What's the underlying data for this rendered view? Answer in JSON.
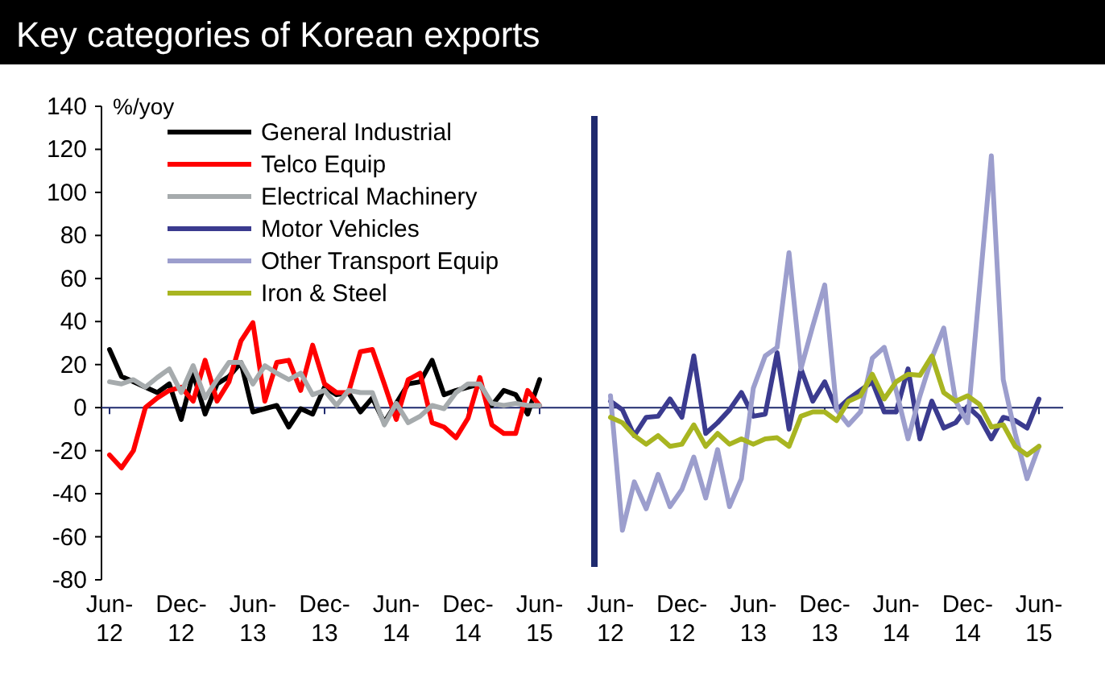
{
  "chart_data": [
    {
      "type": "line",
      "title": "Key categories of Korean exports",
      "ylabel": "%/yoy",
      "categories": [
        "Jun-12",
        null,
        null,
        null,
        null,
        null,
        "Dec-12",
        null,
        null,
        null,
        null,
        null,
        "Jun-13",
        null,
        null,
        null,
        null,
        null,
        "Dec-13",
        null,
        null,
        null,
        null,
        null,
        "Jun-14",
        null,
        null,
        null,
        null,
        null,
        "Dec-14",
        null,
        null,
        null,
        null,
        null,
        "Jun-15"
      ],
      "ylim": [
        -80,
        140
      ],
      "yticks": [
        -80,
        -60,
        -40,
        -20,
        0,
        20,
        40,
        60,
        80,
        100,
        120,
        140
      ],
      "grid": false,
      "legend": "top left",
      "marker": "none",
      "line_style": "solid",
      "ref_lines": [
        {
          "axis": "y",
          "value": 0,
          "color": "#1f2a6e"
        }
      ],
      "series": [
        {
          "name": "General Industrial",
          "color": "#000000",
          "values": [
            27,
            14.5,
            12,
            9.5,
            7,
            11,
            -5.5,
            16,
            -3,
            11,
            14.5,
            21,
            -2,
            -0.5,
            1,
            -9,
            -0.5,
            -3,
            9.5,
            6,
            7,
            -2,
            4.5,
            -7,
            2,
            11,
            12,
            22,
            6,
            8,
            9.5,
            11,
            1,
            8,
            6,
            -3,
            13
          ]
        },
        {
          "name": "Telco Equip",
          "color": "#ff0000",
          "values": [
            -22,
            -28,
            -20,
            0,
            4.5,
            8,
            9.5,
            3,
            22,
            3,
            12,
            31,
            39.5,
            3,
            21,
            22,
            8,
            29,
            11,
            7,
            7,
            26,
            27,
            11,
            -5.5,
            13,
            16,
            -7,
            -9,
            -14,
            -5,
            14,
            -8,
            -12,
            -12,
            8,
            1
          ]
        },
        {
          "name": "Electrical Machinery",
          "color": "#a6abad",
          "values": [
            12,
            11,
            13,
            9.5,
            14,
            18,
            7,
            19.5,
            4.5,
            13,
            21,
            21,
            11,
            19.5,
            16,
            13,
            16,
            6,
            8,
            1,
            8,
            7,
            7,
            -8,
            2,
            -7,
            -4,
            1,
            -0.5,
            7,
            11,
            11,
            2,
            1,
            2,
            1,
            1
          ]
        }
      ]
    },
    {
      "type": "line",
      "tick_labels": "x",
      "categories": [
        "Jun-12",
        null,
        null,
        null,
        null,
        null,
        "Dec-12",
        null,
        null,
        null,
        null,
        null,
        "Jun-13",
        null,
        null,
        null,
        null,
        null,
        "Dec-13",
        null,
        null,
        null,
        null,
        null,
        "Jun-14",
        null,
        null,
        null,
        null,
        null,
        "Dec-14",
        null,
        null,
        null,
        null,
        null,
        "Jun-15"
      ],
      "ylim": [
        -80,
        140
      ],
      "yticks": [
        -80,
        -60,
        -40,
        -20,
        0,
        20,
        40,
        60,
        80,
        100,
        120,
        140
      ],
      "grid": false,
      "legend": "left",
      "marker": "none",
      "line_style": "solid",
      "ref_lines": [
        {
          "axis": "y",
          "value": 0,
          "color": "#1f2a6e"
        }
      ],
      "series": [
        {
          "name": "Motor Vehicles",
          "color": "#3b3b8f",
          "values": [
            3,
            -1,
            -13,
            -4.5,
            -4,
            4,
            -4.5,
            24,
            -12,
            -7,
            -1,
            7,
            -4,
            -3,
            25.5,
            -10,
            18,
            3,
            12,
            -1,
            4,
            8,
            12,
            -2,
            -2,
            18,
            -14.5,
            3,
            -9.5,
            -7,
            0.5,
            -4.5,
            -14.5,
            -4.5,
            -6,
            -9.5,
            4
          ]
        },
        {
          "name": "Other Transport Equip",
          "color": "#9c9ecd",
          "values": [
            5.5,
            -57,
            -34.5,
            -47,
            -31,
            -46,
            -38,
            -23,
            -42,
            -19.5,
            -46,
            -33,
            9,
            24,
            28,
            72,
            18,
            38,
            57,
            -1,
            -8,
            -2,
            23,
            28,
            8,
            -14.5,
            5.5,
            23,
            37,
            3,
            -7,
            55,
            117,
            13,
            -12,
            -33,
            -18
          ]
        },
        {
          "name": "Iron & Steel",
          "color": "#a8b521",
          "values": [
            -4.5,
            -7,
            -13,
            -17,
            -13,
            -18,
            -17,
            -8,
            -18,
            -12,
            -17,
            -14.5,
            -17,
            -14.5,
            -14,
            -18,
            -4,
            -2,
            -2,
            -6,
            3,
            5.5,
            15.5,
            4,
            12,
            15.5,
            15,
            24,
            7,
            3,
            5.5,
            1.5,
            -9,
            -8,
            -18,
            -22,
            -18
          ]
        }
      ]
    }
  ]
}
